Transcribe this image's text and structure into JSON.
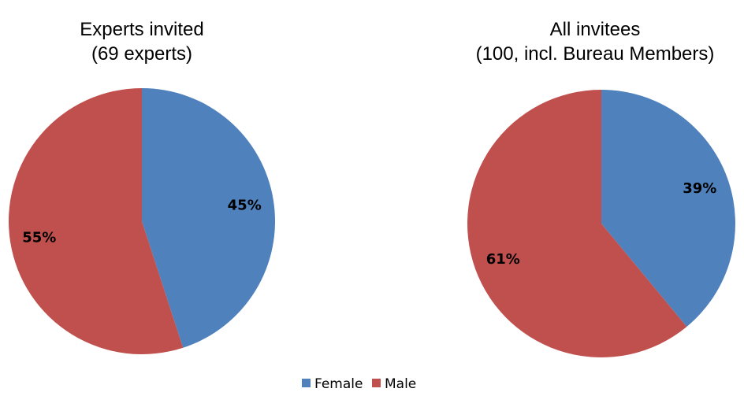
{
  "chart_data": [
    {
      "type": "pie",
      "title": [
        "Experts invited",
        "(69 experts)"
      ],
      "categories": [
        "Female",
        "Male"
      ],
      "values": [
        45,
        55
      ],
      "labels": [
        "45%",
        "55%"
      ],
      "colors": [
        "#4F81BD",
        "#C0504D"
      ]
    },
    {
      "type": "pie",
      "title": [
        "All invitees",
        "(100, incl. Bureau Members)"
      ],
      "categories": [
        "Female",
        "Male"
      ],
      "values": [
        39,
        61
      ],
      "labels": [
        "39%",
        "61%"
      ],
      "colors": [
        "#4F81BD",
        "#C0504D"
      ]
    }
  ],
  "legend": {
    "placement": "bottom",
    "items": [
      {
        "label": "Female",
        "color": "#4F81BD"
      },
      {
        "label": "Male",
        "color": "#C0504D"
      }
    ]
  }
}
